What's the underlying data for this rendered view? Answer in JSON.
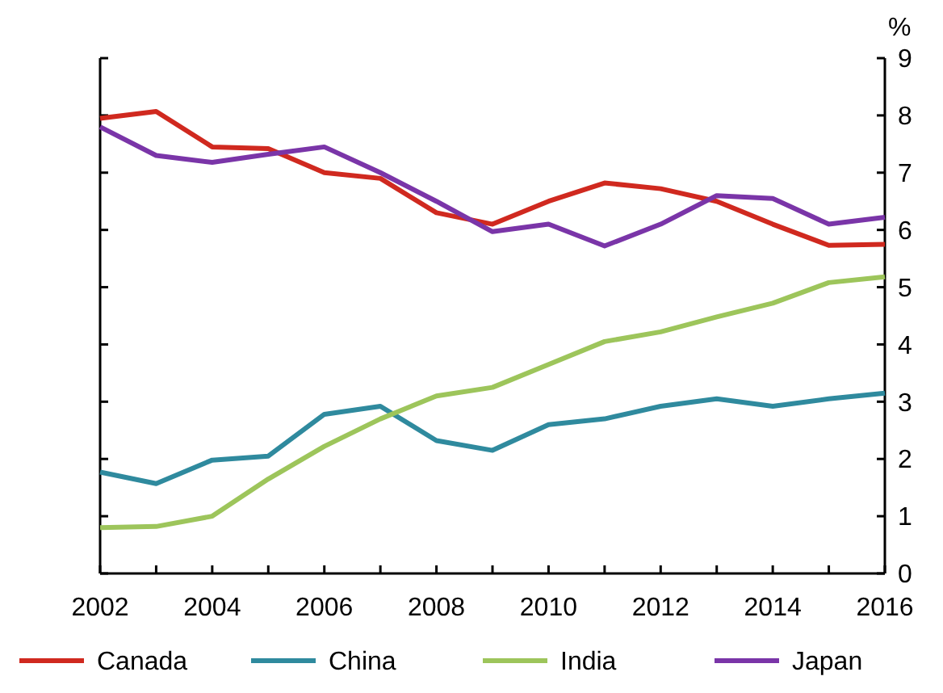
{
  "chart_data": {
    "type": "line",
    "ylabel": "%",
    "x": [
      2002,
      2003,
      2004,
      2005,
      2006,
      2007,
      2008,
      2009,
      2010,
      2011,
      2012,
      2013,
      2014,
      2015,
      2016
    ],
    "xlim": [
      2002,
      2016
    ],
    "xticks": [
      2002,
      2004,
      2006,
      2008,
      2010,
      2012,
      2014,
      2016
    ],
    "ylim": [
      0,
      9
    ],
    "yticks": [
      0,
      1,
      2,
      3,
      4,
      5,
      6,
      7,
      8,
      9
    ],
    "legend": "bottom",
    "grid": false,
    "series": [
      {
        "name": "Canada",
        "color": "#d0291f",
        "values": [
          7.95,
          8.07,
          7.45,
          7.42,
          7.0,
          6.9,
          6.3,
          6.1,
          6.5,
          6.82,
          6.72,
          6.5,
          6.1,
          5.73,
          5.75
        ]
      },
      {
        "name": "China",
        "color": "#2f8a9e",
        "values": [
          1.77,
          1.57,
          1.98,
          2.05,
          2.78,
          2.92,
          2.32,
          2.15,
          2.6,
          2.7,
          2.92,
          3.05,
          2.92,
          3.05,
          3.15
        ]
      },
      {
        "name": "India",
        "color": "#9dc55b",
        "values": [
          0.8,
          0.82,
          1.0,
          1.65,
          2.22,
          2.7,
          3.1,
          3.25,
          3.65,
          4.05,
          4.22,
          4.48,
          4.72,
          5.08,
          5.18
        ]
      },
      {
        "name": "Japan",
        "color": "#7a35a8",
        "values": [
          7.8,
          7.3,
          7.18,
          7.32,
          7.45,
          7.0,
          6.5,
          5.97,
          6.1,
          5.72,
          6.1,
          6.6,
          6.55,
          6.1,
          6.22
        ]
      }
    ]
  }
}
